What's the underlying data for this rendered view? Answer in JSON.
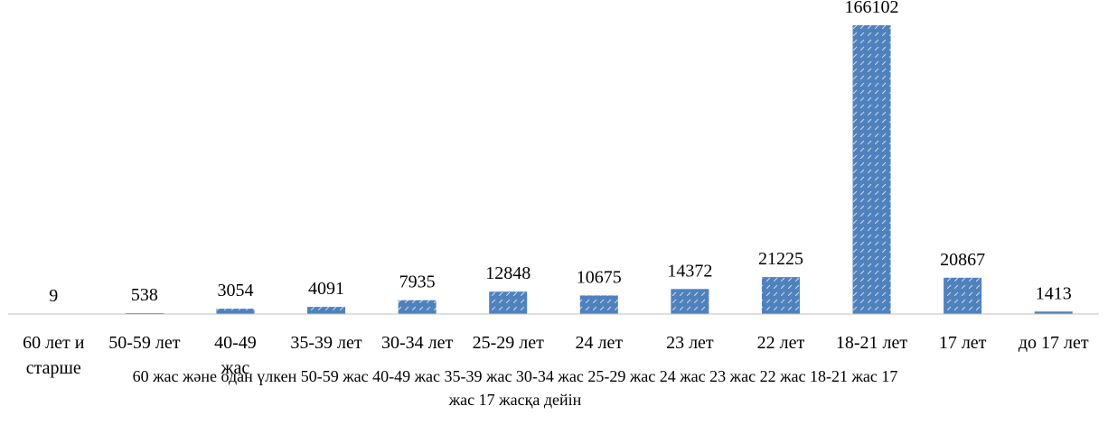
{
  "chart_data": {
    "type": "bar",
    "categories": [
      "60 лет и старше",
      "50-59 лет",
      "40-49 жас",
      "35-39 лет",
      "30-34 лет",
      "25-29 лет",
      "24 лет",
      "23 лет",
      "22 лет",
      "18-21 лет",
      "17 лет",
      "до 17 лет"
    ],
    "values": [
      9,
      538,
      3054,
      4091,
      7935,
      12848,
      10675,
      14372,
      21225,
      166102,
      20867,
      1413
    ],
    "color": "#4f81bd",
    "ylim": [
      0,
      170000
    ],
    "x_label": "60 жас және одан үлкен 50-59 жас 40-49 жас 35-39 жас 30-34 жас 25-29 жас 24 жас 23 жас 22 жас 18-21 жас  17 жас 17 жасқа дейін"
  }
}
